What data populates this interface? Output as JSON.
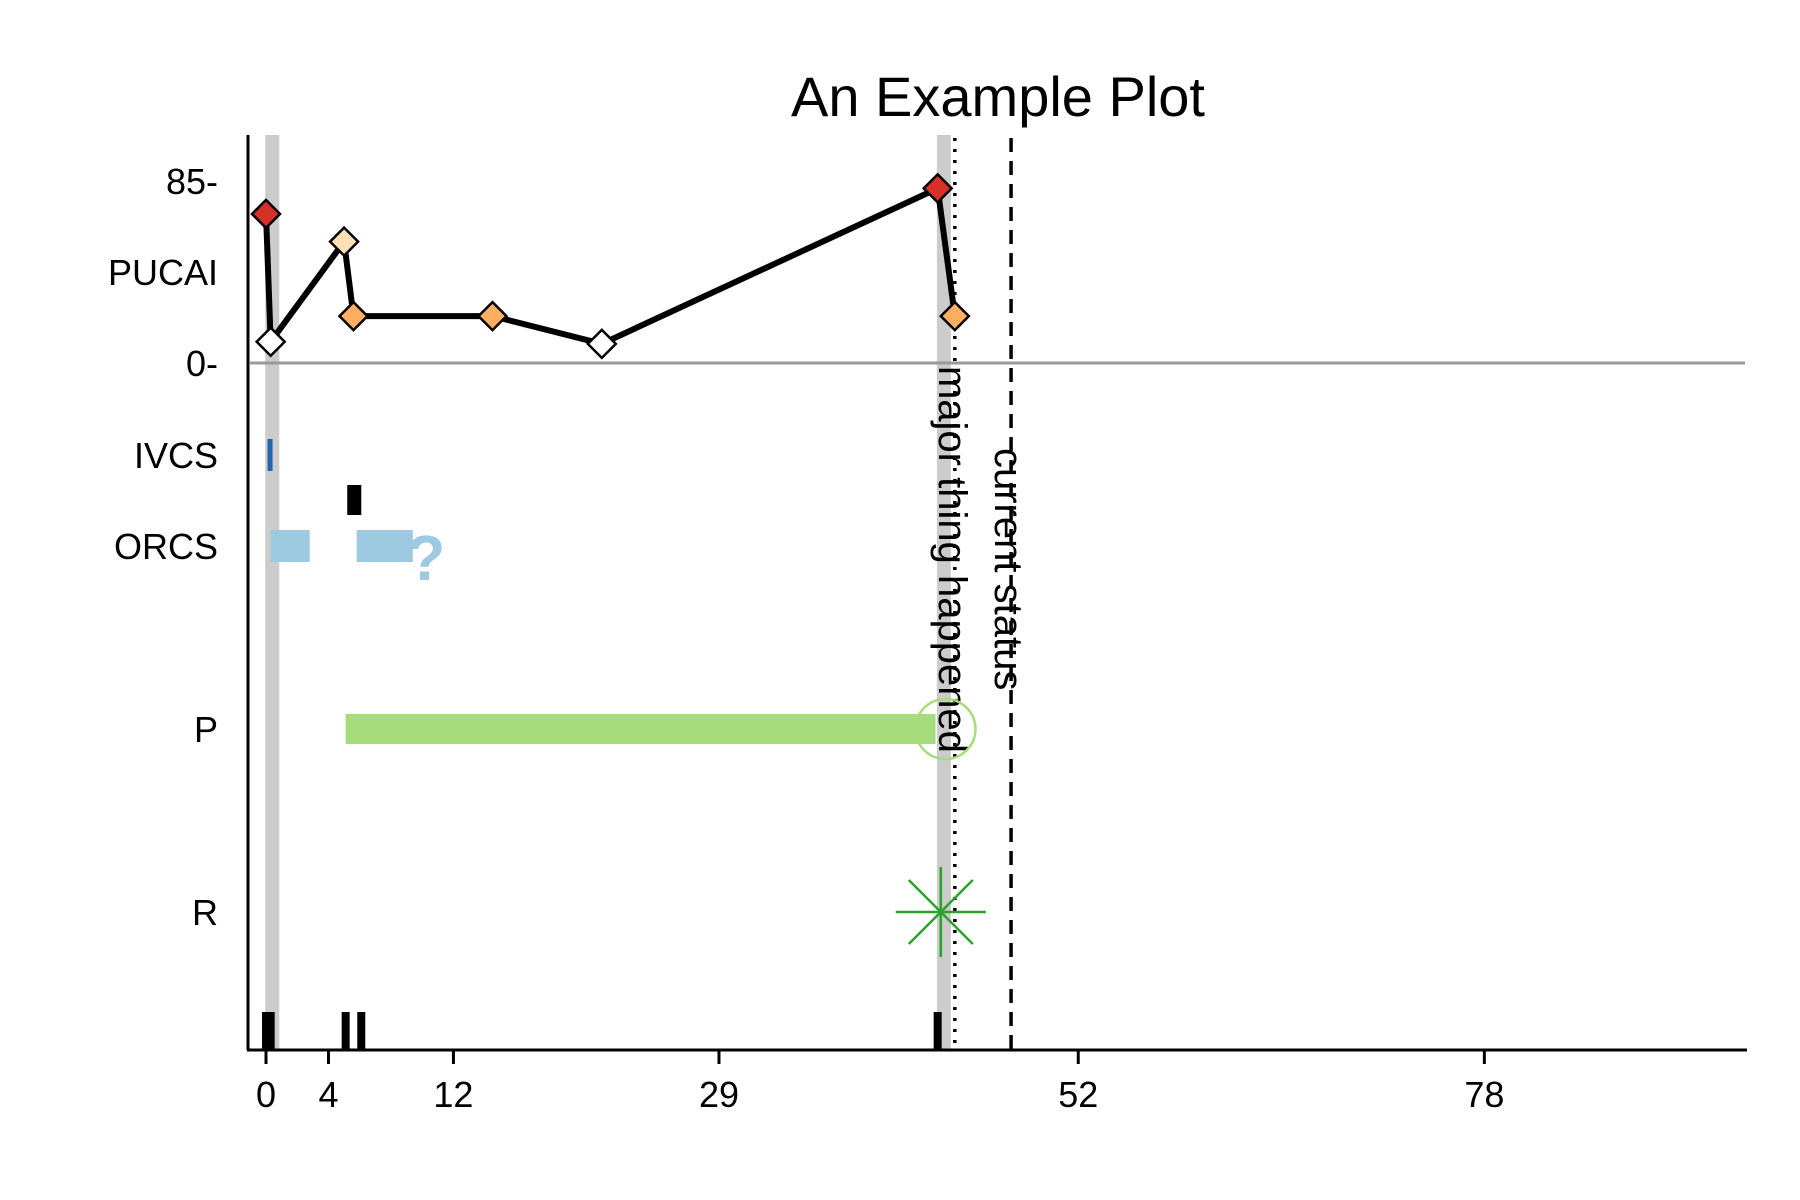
{
  "chart_data": {
    "type": "line",
    "title": "An Example Plot",
    "xlim": [
      -2,
      82
    ],
    "x_ticks": [
      0,
      4,
      12,
      29,
      52,
      78
    ],
    "x_tick_labels": [
      "0",
      "4",
      "12",
      "29",
      "52",
      "78"
    ],
    "pucai": {
      "label": "PUCAI",
      "y_min_label": "0-",
      "y_max_label": "85-",
      "ylim": [
        0,
        85
      ],
      "points": [
        {
          "x": 0,
          "y": 70,
          "color": "#d73027"
        },
        {
          "x": 0.3,
          "y": 10,
          "color": "#ffffff"
        },
        {
          "x": 5,
          "y": 57,
          "color": "#fee0b6"
        },
        {
          "x": 5.6,
          "y": 22,
          "color": "#fdae61"
        },
        {
          "x": 14.5,
          "y": 22,
          "color": "#fdae61"
        },
        {
          "x": 21.5,
          "y": 9,
          "color": "#ffffff"
        },
        {
          "x": 43,
          "y": 82,
          "color": "#d73027"
        },
        {
          "x": 44.1,
          "y": 22,
          "color": "#fdae61"
        }
      ]
    },
    "tracks": [
      {
        "label": "IVCS",
        "color": "#2166ac"
      },
      {
        "label": "ORCS",
        "color": "#9ecae1",
        "unknown_marker": "?"
      },
      {
        "label": "P",
        "color": "#a6dc7a"
      },
      {
        "label": "R",
        "color": "#2ca02c"
      }
    ],
    "ivcs_segments": [
      {
        "start": 0.1,
        "end": 0.4
      }
    ],
    "ivcs_dose_marks": [
      {
        "start": 5.2,
        "end": 6.1
      }
    ],
    "orcs_segments": [
      {
        "start": 0.3,
        "end": 2.8
      },
      {
        "start": 5.8,
        "end": 9.4
      }
    ],
    "orcs_unknown_at": 9.6,
    "p_segments": [
      {
        "start": 5.1,
        "end": 43.5,
        "ongoing": true
      }
    ],
    "r_events": [
      {
        "x": 43.2
      }
    ],
    "highlight_bands": [
      {
        "center": 0.4
      },
      {
        "center": 43.4
      }
    ],
    "rug_ticks": [
      0,
      0.3,
      5.1,
      6.1,
      43
    ],
    "vlines": [
      {
        "x": 44.1,
        "style": "dotted",
        "label": "major thing happened"
      },
      {
        "x": 47.7,
        "style": "dashed",
        "label": "current status"
      }
    ]
  }
}
